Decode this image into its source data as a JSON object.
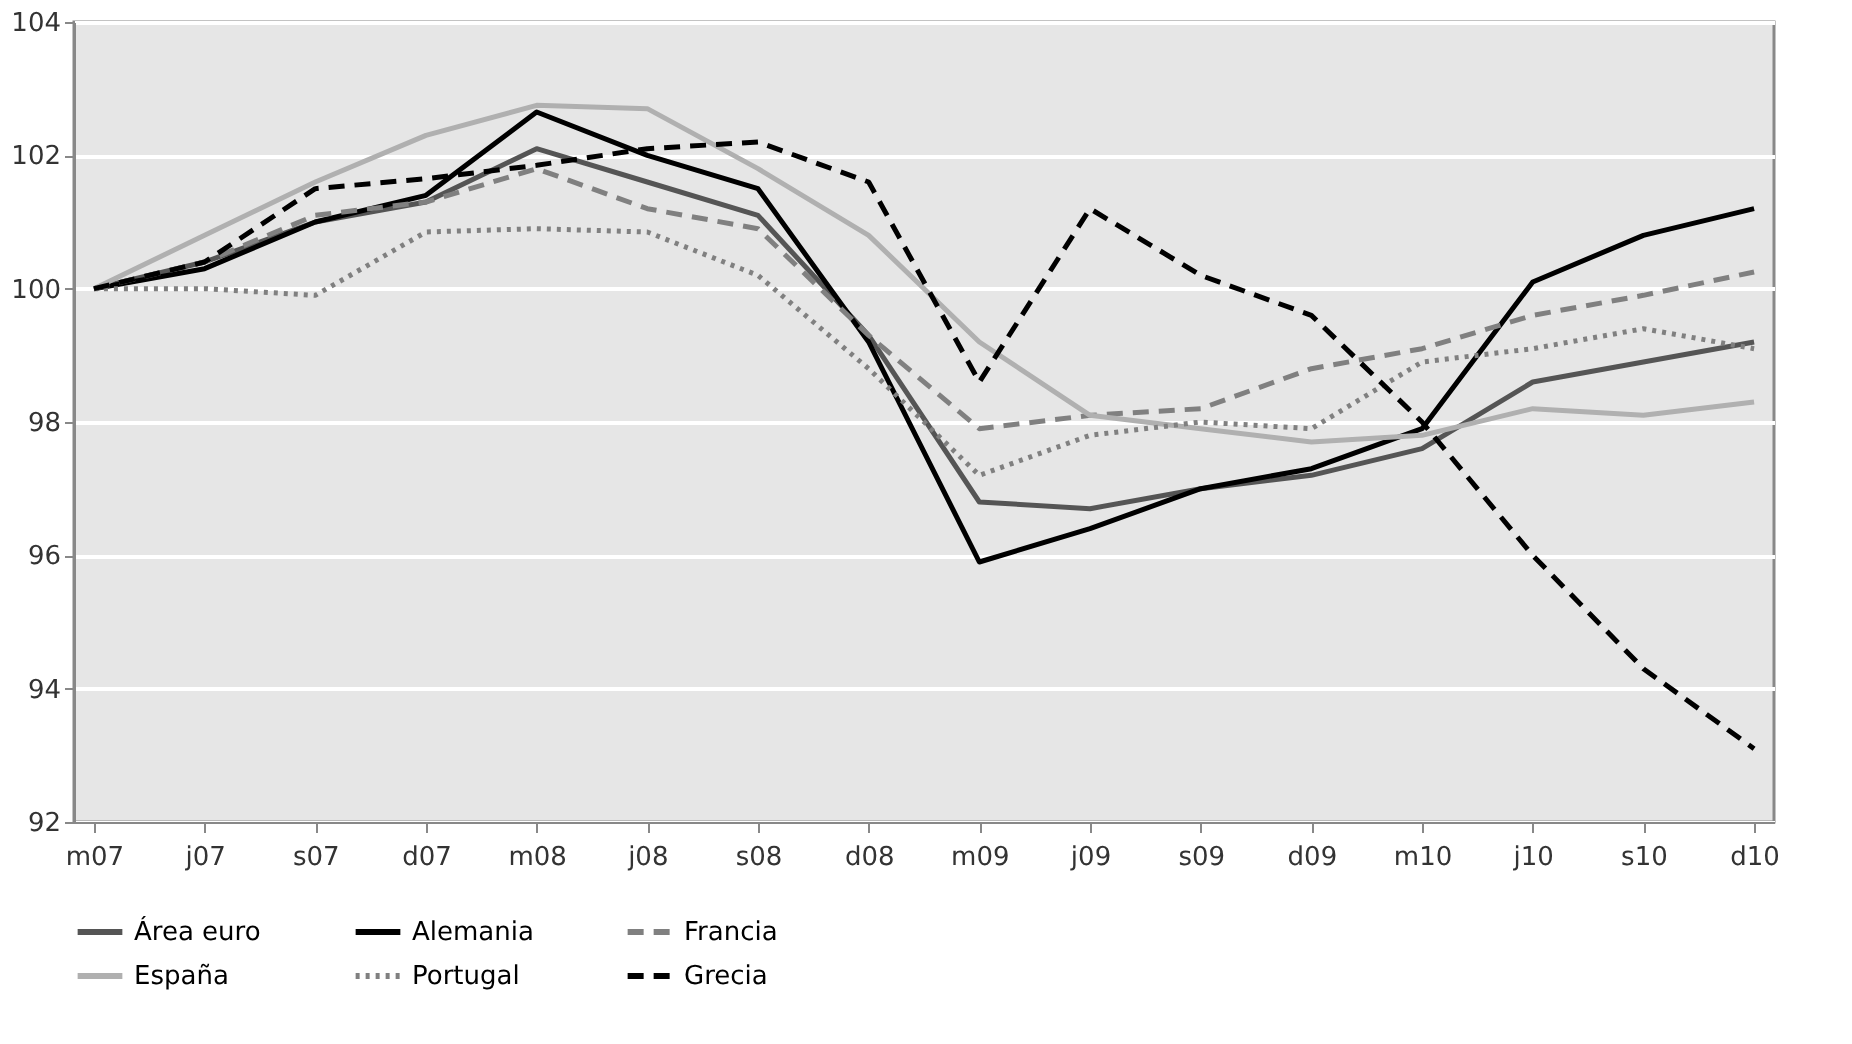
{
  "chart_data": {
    "type": "line",
    "categories": [
      "m07",
      "j07",
      "s07",
      "d07",
      "m08",
      "j08",
      "s08",
      "d08",
      "m09",
      "j09",
      "s09",
      "d09",
      "m10",
      "j10",
      "s10",
      "d10"
    ],
    "series": [
      {
        "name": "Área euro",
        "color": "#555555",
        "line_style": "solid",
        "values": [
          100,
          100.4,
          101.0,
          101.3,
          102.1,
          101.6,
          101.1,
          99.3,
          96.8,
          96.7,
          97.0,
          97.2,
          97.6,
          98.6,
          98.9,
          99.2
        ]
      },
      {
        "name": "Alemania",
        "color": "#000000",
        "line_style": "solid",
        "values": [
          100,
          100.3,
          101.0,
          101.4,
          102.65,
          102.0,
          101.5,
          99.2,
          95.9,
          96.4,
          97.0,
          97.3,
          97.9,
          100.1,
          100.8,
          101.2
        ]
      },
      {
        "name": "Francia",
        "color": "#808080",
        "line_style": "dashed",
        "values": [
          100,
          100.4,
          101.1,
          101.3,
          101.8,
          101.2,
          100.9,
          99.3,
          97.9,
          98.1,
          98.2,
          98.8,
          99.1,
          99.6,
          99.9,
          100.25
        ]
      },
      {
        "name": "España",
        "color": "#b0b0b0",
        "line_style": "solid",
        "values": [
          100,
          100.8,
          101.6,
          102.3,
          102.75,
          102.7,
          101.8,
          100.8,
          99.2,
          98.1,
          97.9,
          97.7,
          97.8,
          98.2,
          98.1,
          98.3
        ]
      },
      {
        "name": "Portugal",
        "color": "#808080",
        "line_style": "dotted",
        "values": [
          100,
          100.0,
          99.9,
          100.85,
          100.9,
          100.85,
          100.2,
          98.8,
          97.2,
          97.8,
          98.0,
          97.9,
          98.9,
          99.1,
          99.4,
          99.1
        ]
      },
      {
        "name": "Grecia",
        "color": "#000000",
        "line_style": "dashed",
        "values": [
          100,
          100.4,
          101.5,
          101.65,
          101.85,
          102.1,
          102.2,
          101.6,
          98.6,
          101.2,
          100.2,
          99.6,
          98.0,
          96.0,
          94.3,
          93.1
        ]
      }
    ],
    "ylim": [
      92,
      104
    ],
    "yticks": [
      92,
      94,
      96,
      98,
      100,
      102,
      104
    ],
    "grid": "y",
    "legend": "bottom",
    "marker": "none"
  }
}
